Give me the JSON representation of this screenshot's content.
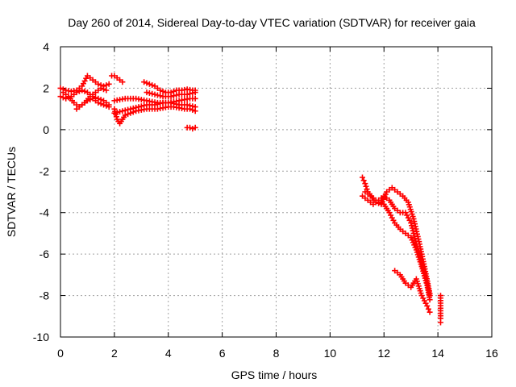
{
  "chart_data": {
    "type": "scatter",
    "title": "Day 260 of 2014, Sidereal Day-to-day VTEC variation (SDTVAR) for receiver gaia",
    "xlabel": "GPS time / hours",
    "ylabel": "SDTVAR / TECUs",
    "xlim": [
      0,
      16
    ],
    "ylim": [
      -10,
      4
    ],
    "xticks": [
      0,
      2,
      4,
      6,
      8,
      10,
      12,
      14,
      16
    ],
    "yticks": [
      -10,
      -8,
      -6,
      -4,
      -2,
      0,
      2,
      4
    ],
    "grid": true,
    "marker": "+",
    "color": "#ff0000",
    "series": [
      {
        "name": "track-a",
        "x": [
          0.0,
          0.2,
          0.4,
          0.6,
          0.8,
          1.0,
          1.2,
          1.4,
          1.6,
          1.8
        ],
        "y": [
          2.0,
          1.9,
          1.85,
          1.9,
          2.1,
          2.6,
          2.4,
          2.2,
          2.1,
          2.2
        ]
      },
      {
        "name": "track-b",
        "x": [
          0.0,
          0.2,
          0.4,
          0.6,
          0.8,
          1.0,
          1.2,
          1.4,
          1.6,
          1.8
        ],
        "y": [
          1.6,
          1.5,
          1.6,
          1.8,
          1.9,
          1.8,
          1.6,
          1.5,
          1.4,
          1.2
        ]
      },
      {
        "name": "track-c",
        "x": [
          0.1,
          0.3,
          0.5,
          0.7,
          0.9,
          1.1,
          1.3,
          1.5,
          1.7
        ],
        "y": [
          1.8,
          1.6,
          1.3,
          1.1,
          1.3,
          1.6,
          1.8,
          2.0,
          1.9
        ]
      },
      {
        "name": "track-d",
        "x": [
          0.6,
          0.8,
          1.0,
          1.2,
          1.4,
          1.6,
          1.8
        ],
        "y": [
          1.0,
          1.2,
          1.4,
          1.5,
          1.3,
          1.2,
          1.1
        ]
      },
      {
        "name": "track-e",
        "x": [
          1.9,
          2.0,
          2.1,
          2.2,
          2.3
        ],
        "y": [
          2.6,
          2.6,
          2.5,
          2.4,
          2.3
        ]
      },
      {
        "name": "track-f",
        "x": [
          2.0,
          2.4,
          2.8,
          3.2,
          3.6,
          4.0,
          4.4,
          4.8,
          5.0
        ],
        "y": [
          1.4,
          1.5,
          1.5,
          1.4,
          1.3,
          1.3,
          1.4,
          1.5,
          1.5
        ]
      },
      {
        "name": "track-g",
        "x": [
          2.0,
          2.1,
          2.2,
          2.3,
          2.4,
          2.6,
          2.8,
          3.0,
          3.2,
          3.4,
          3.6,
          3.8,
          4.0,
          4.2,
          4.4,
          4.6,
          4.8,
          5.0
        ],
        "y": [
          1.0,
          0.5,
          0.3,
          0.5,
          0.7,
          0.8,
          0.9,
          0.95,
          1.0,
          1.0,
          1.0,
          1.05,
          1.1,
          1.1,
          1.05,
          1.0,
          1.0,
          0.9
        ]
      },
      {
        "name": "track-h",
        "x": [
          2.0,
          2.3,
          2.6,
          2.9,
          3.2,
          3.5,
          3.8,
          4.1,
          4.4,
          4.7,
          5.0
        ],
        "y": [
          0.8,
          0.9,
          1.0,
          1.1,
          1.2,
          1.2,
          1.3,
          1.3,
          1.2,
          1.2,
          1.1
        ]
      },
      {
        "name": "track-i",
        "x": [
          3.1,
          3.3,
          3.5,
          3.7,
          3.9,
          4.1,
          4.3,
          4.5,
          4.7,
          4.9,
          5.0
        ],
        "y": [
          2.3,
          2.2,
          2.1,
          1.9,
          1.8,
          1.8,
          1.9,
          1.9,
          1.95,
          1.9,
          1.9
        ]
      },
      {
        "name": "track-j",
        "x": [
          3.2,
          3.5,
          3.8,
          4.1,
          4.4,
          4.7,
          5.0
        ],
        "y": [
          1.8,
          1.7,
          1.6,
          1.6,
          1.7,
          1.7,
          1.8
        ]
      },
      {
        "name": "track-k",
        "x": [
          4.7,
          4.8,
          4.9,
          5.0
        ],
        "y": [
          0.1,
          0.1,
          0.05,
          0.1
        ]
      },
      {
        "name": "track-l",
        "x": [
          11.2,
          11.3,
          11.4,
          11.6,
          11.8,
          12.0,
          12.2,
          12.4,
          12.6,
          12.8,
          13.0,
          13.2,
          13.4,
          13.6,
          13.7
        ],
        "y": [
          -2.3,
          -2.6,
          -3.0,
          -3.3,
          -3.5,
          -3.6,
          -4.0,
          -4.5,
          -4.8,
          -5.0,
          -5.2,
          -5.8,
          -6.6,
          -7.5,
          -8.2
        ]
      },
      {
        "name": "track-m",
        "x": [
          11.2,
          11.4,
          11.6,
          11.8,
          12.0,
          12.2,
          12.4,
          12.6,
          12.8,
          13.0,
          13.2,
          13.4,
          13.6,
          13.7
        ],
        "y": [
          -3.2,
          -3.4,
          -3.6,
          -3.4,
          -3.2,
          -3.4,
          -3.8,
          -4.0,
          -4.0,
          -4.5,
          -5.5,
          -6.4,
          -7.4,
          -8.0
        ]
      },
      {
        "name": "track-n",
        "x": [
          11.3,
          11.5,
          11.7,
          11.9,
          12.1,
          12.3,
          12.5,
          12.7,
          12.9,
          13.1,
          13.3,
          13.5,
          13.7
        ],
        "y": [
          -3.0,
          -3.2,
          -3.5,
          -3.6,
          -3.0,
          -2.8,
          -3.0,
          -3.2,
          -3.5,
          -4.3,
          -5.4,
          -6.6,
          -7.9
        ]
      },
      {
        "name": "track-o",
        "x": [
          12.4,
          12.6,
          12.8,
          13.0,
          13.2,
          13.4,
          13.6,
          13.7
        ],
        "y": [
          -6.8,
          -7.0,
          -7.4,
          -7.6,
          -7.2,
          -8.0,
          -8.5,
          -8.8
        ]
      },
      {
        "name": "track-p",
        "x": [
          14.1,
          14.1,
          14.1
        ],
        "y": [
          -8.0,
          -9.1,
          -9.3
        ]
      }
    ]
  }
}
